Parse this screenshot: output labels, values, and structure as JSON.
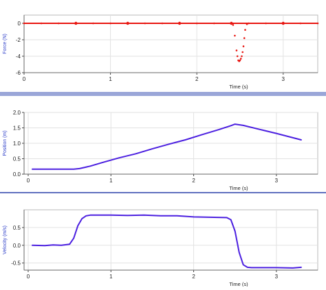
{
  "chart_data": [
    {
      "type": "scatter",
      "xlabel": "Time (s)",
      "ylabel": "Force (N)",
      "xlim": [
        0,
        3.4
      ],
      "ylim": [
        -6,
        1
      ],
      "xticks": [
        0,
        1,
        2,
        3
      ],
      "yticks": [
        0,
        -2,
        -4,
        -6
      ],
      "xtick_labels": [
        "0",
        "1",
        "2",
        "3"
      ],
      "ytick_labels": [
        "0",
        "-2",
        "-4",
        "-6"
      ],
      "grid": true,
      "series": [
        {
          "color": "#e8140f",
          "markers_at": [
            0.6,
            1.2,
            1.8,
            2.4,
            3.0
          ],
          "x": [
            0.0,
            0.2,
            0.4,
            0.6,
            0.8,
            1.0,
            1.2,
            1.4,
            1.6,
            1.8,
            2.0,
            2.2,
            2.4,
            2.42,
            2.44,
            2.46,
            2.47,
            2.48,
            2.49,
            2.5,
            2.51,
            2.52,
            2.53,
            2.54,
            2.55,
            2.56,
            2.58,
            2.6,
            2.8,
            3.0,
            3.2,
            3.4
          ],
          "y": [
            0.0,
            0.0,
            0.0,
            0.0,
            0.0,
            0.0,
            0.0,
            0.0,
            0.0,
            0.0,
            0.0,
            0.0,
            0.0,
            -0.2,
            -1.5,
            -3.3,
            -4.0,
            -4.5,
            -4.6,
            -4.5,
            -4.3,
            -4.0,
            -3.5,
            -2.8,
            -1.8,
            -0.8,
            -0.1,
            0.0,
            0.0,
            0.0,
            0.0,
            0.0
          ]
        }
      ]
    },
    {
      "type": "line",
      "xlabel": "Time (s)",
      "ylabel": "Position (m)",
      "xlim": [
        -0.05,
        3.5
      ],
      "ylim": [
        0,
        2.0
      ],
      "xticks": [
        0,
        1,
        2,
        3
      ],
      "yticks": [
        0.0,
        0.5,
        1.0,
        1.5,
        2.0
      ],
      "xtick_labels": [
        "0",
        "1",
        "2",
        "3"
      ],
      "ytick_labels": [
        "0.0",
        "0.5",
        "1.0",
        "1.5",
        "2.0"
      ],
      "grid": true,
      "series": [
        {
          "color": "#4b1fe0",
          "x": [
            0.05,
            0.3,
            0.55,
            0.62,
            0.75,
            0.9,
            1.1,
            1.3,
            1.5,
            1.7,
            1.9,
            2.1,
            2.3,
            2.45,
            2.5,
            2.6,
            2.8,
            3.0,
            3.2,
            3.3
          ],
          "y": [
            0.16,
            0.16,
            0.16,
            0.18,
            0.26,
            0.38,
            0.53,
            0.66,
            0.82,
            0.97,
            1.11,
            1.28,
            1.44,
            1.57,
            1.62,
            1.58,
            1.45,
            1.32,
            1.18,
            1.11
          ]
        }
      ]
    },
    {
      "type": "line",
      "xlabel": "Time (s)",
      "ylabel": "Velocity (m/s)",
      "xlim": [
        -0.05,
        3.5
      ],
      "ylim": [
        -0.7,
        1.0
      ],
      "xticks": [
        0,
        1,
        2,
        3
      ],
      "yticks": [
        -0.5,
        0.0,
        0.5
      ],
      "xtick_labels": [
        "0",
        "1",
        "2",
        "3"
      ],
      "ytick_labels": [
        "-0.5",
        "0.0",
        "0.5"
      ],
      "grid": true,
      "series": [
        {
          "color": "#4b1fe0",
          "x": [
            0.05,
            0.2,
            0.3,
            0.4,
            0.5,
            0.55,
            0.6,
            0.65,
            0.7,
            0.75,
            0.8,
            1.0,
            1.2,
            1.4,
            1.6,
            1.8,
            2.0,
            2.2,
            2.4,
            2.45,
            2.5,
            2.55,
            2.6,
            2.65,
            2.7,
            2.8,
            3.0,
            3.2,
            3.3
          ],
          "y": [
            0.0,
            -0.01,
            0.01,
            0.0,
            0.03,
            0.2,
            0.55,
            0.75,
            0.83,
            0.85,
            0.85,
            0.85,
            0.84,
            0.85,
            0.83,
            0.83,
            0.8,
            0.79,
            0.78,
            0.72,
            0.4,
            -0.2,
            -0.55,
            -0.62,
            -0.63,
            -0.63,
            -0.63,
            -0.64,
            -0.62
          ]
        }
      ]
    }
  ]
}
